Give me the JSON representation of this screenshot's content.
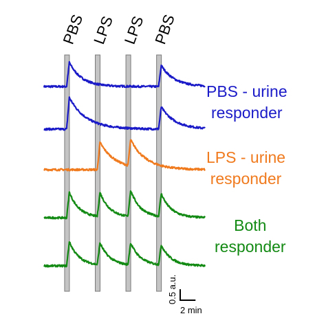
{
  "chart_data": {
    "type": "line",
    "stimuli": [
      "PBS",
      "LPS",
      "LPS",
      "PBS"
    ],
    "stimulus_times_min": [
      3,
      7,
      11,
      15
    ],
    "x_range_min": [
      0,
      21
    ],
    "groups": [
      {
        "label": [
          "PBS - urine",
          "responder"
        ],
        "color": "#1a1ac8",
        "traces": [
          {
            "baseline": 0.0,
            "responses": [
              {
                "stimulus_index": 0,
                "peak": 0.55,
                "tau_min": 1.6
              },
              {
                "stimulus_index": 3,
                "peak": 0.48,
                "tau_min": 1.7
              }
            ]
          },
          {
            "baseline": 0.0,
            "responses": [
              {
                "stimulus_index": 0,
                "peak": 0.72,
                "tau_min": 2.2
              },
              {
                "stimulus_index": 3,
                "peak": 0.5,
                "tau_min": 1.8
              }
            ]
          }
        ]
      },
      {
        "label": [
          "LPS - urine",
          "responder"
        ],
        "color": "#f07a1e",
        "traces": [
          {
            "baseline": 0.0,
            "responses": [
              {
                "stimulus_index": 1,
                "peak": 0.62,
                "tau_min": 2.0
              },
              {
                "stimulus_index": 2,
                "peak": 0.6,
                "tau_min": 2.0
              }
            ]
          }
        ]
      },
      {
        "label": [
          "Both",
          "responder"
        ],
        "color": "#138a13",
        "traces": [
          {
            "baseline": 0.0,
            "responses": [
              {
                "stimulus_index": 0,
                "peak": 0.58,
                "tau_min": 1.3
              },
              {
                "stimulus_index": 1,
                "peak": 0.55,
                "tau_min": 1.3
              },
              {
                "stimulus_index": 2,
                "peak": 0.6,
                "tau_min": 1.3
              },
              {
                "stimulus_index": 3,
                "peak": 0.52,
                "tau_min": 1.3
              }
            ]
          },
          {
            "baseline": 0.0,
            "responses": [
              {
                "stimulus_index": 0,
                "peak": 0.55,
                "tau_min": 1.3
              },
              {
                "stimulus_index": 1,
                "peak": 0.5,
                "tau_min": 1.3
              },
              {
                "stimulus_index": 2,
                "peak": 0.5,
                "tau_min": 1.3
              },
              {
                "stimulus_index": 3,
                "peak": 0.45,
                "tau_min": 1.3
              }
            ]
          }
        ]
      }
    ],
    "scale_bar": {
      "y_value": 0.5,
      "y_label": "0.5 a.u.",
      "x_value_min": 2,
      "x_label": "2 min"
    }
  }
}
